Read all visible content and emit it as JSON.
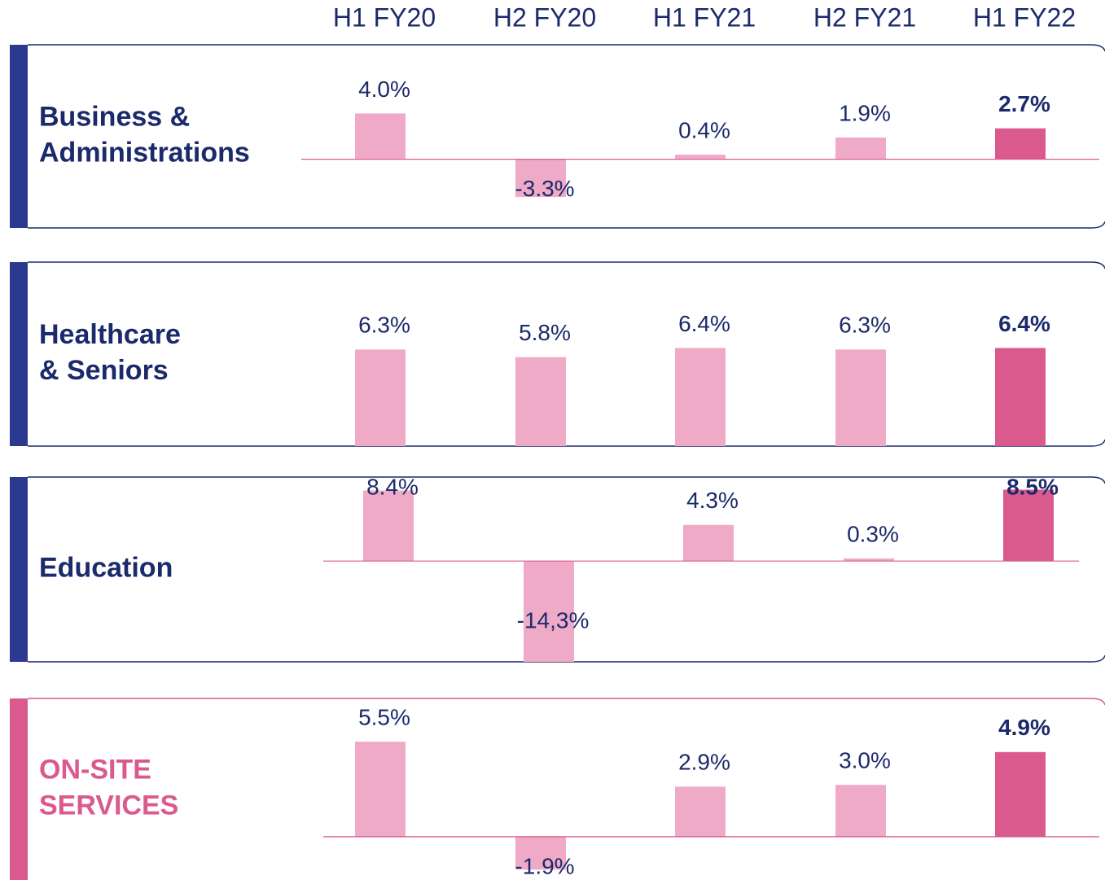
{
  "categories": [
    "H1 FY20",
    "H2 FY20",
    "H1 FY21",
    "H2 FY21",
    "H1 FY22"
  ],
  "chart_data": [
    {
      "type": "bar",
      "title": [
        "Business &",
        "Administrations"
      ],
      "values": [
        4.0,
        -3.3,
        0.4,
        1.9,
        2.7
      ],
      "value_labels": [
        "4.0%",
        "-3.3%",
        "0.4%",
        "1.9%",
        "2.7%"
      ],
      "color": "#eeaac6",
      "highlight_color": "#db5a8e",
      "ylim": [
        -6,
        10
      ]
    },
    {
      "type": "bar",
      "title": [
        "Healthcare",
        "& Seniors"
      ],
      "values": [
        6.3,
        5.8,
        6.4,
        6.3,
        6.4
      ],
      "value_labels": [
        "6.3%",
        "5.8%",
        "6.4%",
        "6.3%",
        "6.4%"
      ],
      "color": "#eeaac6",
      "highlight_color": "#db5a8e",
      "ylim": [
        0,
        12
      ]
    },
    {
      "type": "bar",
      "title": [
        "Education"
      ],
      "values": [
        8.4,
        -14.3,
        4.3,
        0.3,
        8.5
      ],
      "value_labels": [
        "8.4%",
        "-14,3%",
        "4.3%",
        "0.3%",
        "8.5%"
      ],
      "color": "#eeaac6",
      "highlight_color": "#db5a8e",
      "ylim": [
        -12,
        10
      ]
    },
    {
      "type": "bar",
      "title": [
        "ON-SITE",
        "SERVICES"
      ],
      "values": [
        5.5,
        -1.9,
        2.9,
        3.0,
        4.9
      ],
      "value_labels": [
        "5.5%",
        "-1.9%",
        "2.9%",
        "3.0%",
        "4.9%"
      ],
      "color": "#eeaac6",
      "highlight_color": "#db5a8e",
      "ylim": [
        -2.5,
        8
      ]
    }
  ]
}
